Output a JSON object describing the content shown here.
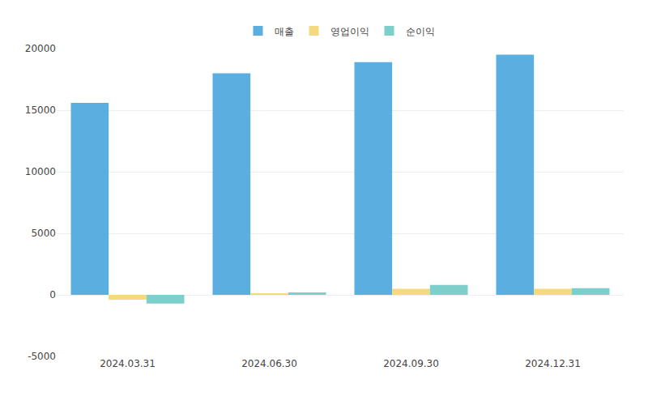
{
  "chart_data": {
    "type": "bar",
    "categories": [
      "2024.03.31",
      "2024.06.30",
      "2024.09.30",
      "2024.12.31"
    ],
    "series": [
      {
        "name": "매출",
        "color": "#5BAEE0",
        "values": [
          15600,
          18000,
          18900,
          19500
        ]
      },
      {
        "name": "영업이익",
        "color": "#F5D980",
        "values": [
          -400,
          100,
          500,
          500
        ]
      },
      {
        "name": "순이익",
        "color": "#7DCFCC",
        "values": [
          -700,
          200,
          800,
          550
        ]
      }
    ],
    "ylim": [
      -5000,
      20000
    ],
    "yticks": [
      -5000,
      0,
      5000,
      10000,
      15000,
      20000
    ],
    "grid": true,
    "legend": "top"
  }
}
